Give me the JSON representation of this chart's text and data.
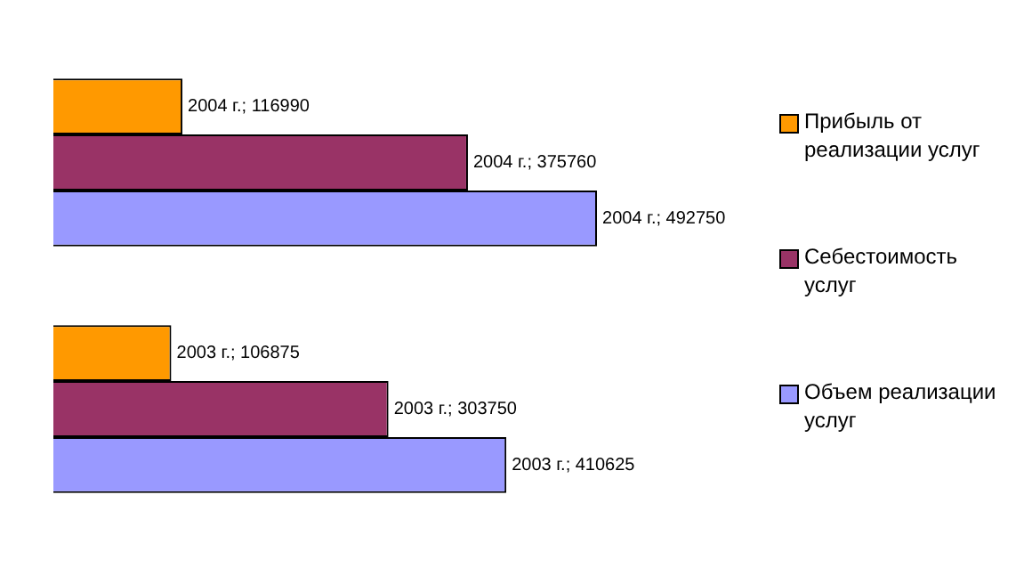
{
  "chart_data": {
    "type": "bar",
    "orientation": "horizontal",
    "categories": [
      null,
      null
    ],
    "legend": "right",
    "series": [
      {
        "name": "Прибыль от реализации услуг",
        "color": "#ff9900",
        "values": [
          116990,
          106875
        ],
        "value_labels": [
          "2004 г.; 116990",
          "2003 г.; 106875"
        ]
      },
      {
        "name": "Себестоимость услуг",
        "color": "#993366",
        "values": [
          375760,
          303750
        ],
        "value_labels": [
          "2004 г.; 375760",
          "2003 г.; 303750"
        ]
      },
      {
        "name": "Объем реализации услуг",
        "color": "#9999ff",
        "values": [
          492750,
          410625
        ],
        "value_labels": [
          "2004 г.; 492750",
          "2003 г.; 410625"
        ]
      }
    ]
  }
}
